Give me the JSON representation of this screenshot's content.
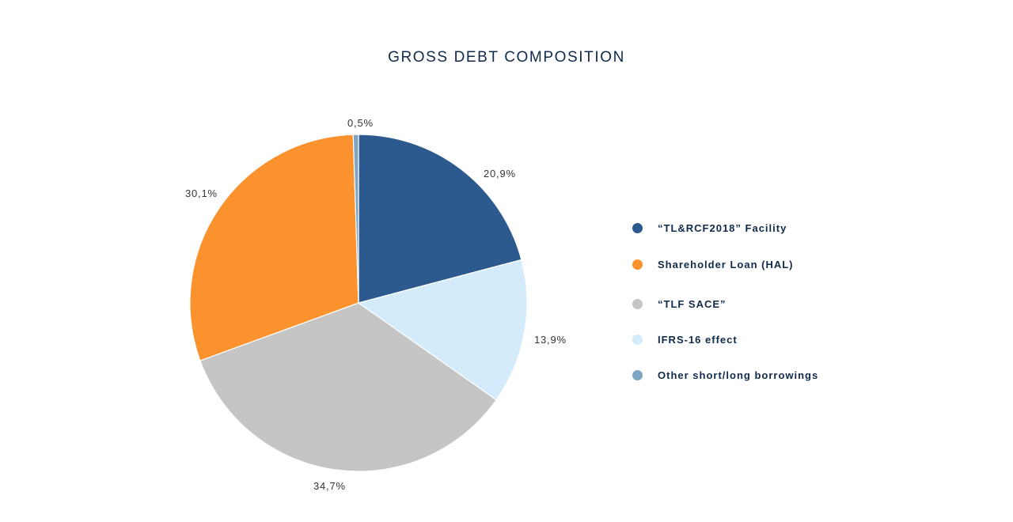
{
  "chart_data": {
    "type": "pie",
    "title": "GROSS DEBT COMPOSITION",
    "slices": [
      {
        "label": "“TL&RCF2018” Facility",
        "value": 20.9,
        "display": "20,9%",
        "color": "#2d5a8e"
      },
      {
        "label": "IFRS-16 effect",
        "value": 13.9,
        "display": "13,9%",
        "color": "#d3ebfb"
      },
      {
        "label": "“TLF SACE”",
        "value": 34.7,
        "display": "34,7%",
        "color": "#c5c5c5"
      },
      {
        "label": "Shareholder Loan (HAL)",
        "value": 30.1,
        "display": "30,1%",
        "color": "#fb922e"
      },
      {
        "label": "Other short/long borrowings",
        "value": 0.5,
        "display": "0,5%",
        "color": "#7ea4c4"
      }
    ],
    "legend": {
      "placement": "right",
      "order": [
        "“TL&RCF2018” Facility",
        "Shareholder Loan (HAL)",
        "“TLF SACE”",
        "IFRS-16 effect",
        "Other short/long borrowings"
      ]
    },
    "start_angle": "12 o'clock, clockwise"
  }
}
